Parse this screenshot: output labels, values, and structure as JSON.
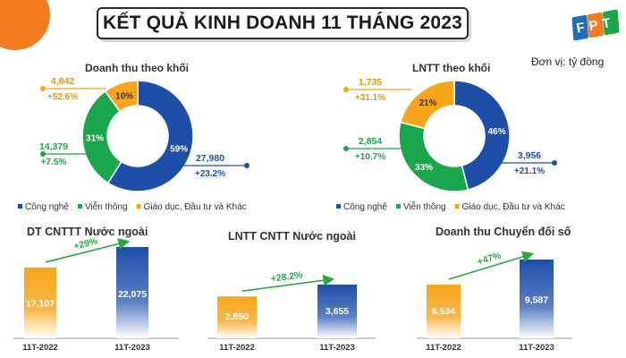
{
  "header": {
    "title": "KẾT QUẢ KINH DOANH 11 THÁNG 2023",
    "unit": "Đơn vị: tỷ đồng",
    "logo_text": "FPT"
  },
  "colors": {
    "blue": "#1e4fa8",
    "green": "#1aa64a",
    "orange": "#f8a51c",
    "accent_orange": "#f47b20",
    "arrow_green": "#27a844"
  },
  "chart_data": [
    {
      "type": "pie",
      "title": "Doanh thu theo khối",
      "slices": [
        {
          "name": "Công nghệ",
          "percent": 59,
          "percent_label": "59%",
          "value": 27980,
          "value_label": "27,980",
          "growth": "+23.2%"
        },
        {
          "name": "Viễn thông",
          "percent": 31,
          "percent_label": "31%",
          "value": 14379,
          "value_label": "14,379",
          "growth": "+7.5%"
        },
        {
          "name": "Giáo dục, Đầu tư và Khác",
          "percent": 10,
          "percent_label": "10%",
          "value": 4842,
          "value_label": "4,842",
          "growth": "+52.6%"
        }
      ],
      "legend": [
        "Công nghệ",
        "Viễn thông",
        "Giáo dục, Đầu tư và Khác"
      ],
      "legend_placement": "bottom"
    },
    {
      "type": "pie",
      "title": "LNTT theo khối",
      "slices": [
        {
          "name": "Công nghệ",
          "percent": 46,
          "percent_label": "46%",
          "value": 3956,
          "value_label": "3,956",
          "growth": "+21.1%"
        },
        {
          "name": "Viễn thông",
          "percent": 33,
          "percent_label": "33%",
          "value": 2854,
          "value_label": "2,854",
          "growth": "+10.7%"
        },
        {
          "name": "Giáo dục, Đầu tư và Khác",
          "percent": 21,
          "percent_label": "21%",
          "value": 1735,
          "value_label": "1,735",
          "growth": "+31.1%"
        }
      ],
      "legend": [
        "Công nghệ",
        "Viễn thông",
        "Giáo dục, Đầu tư và Khác"
      ],
      "legend_placement": "bottom"
    },
    {
      "type": "bar",
      "title": "DT CNTTT Nước ngoài",
      "categories": [
        "11T-2022",
        "11T-2023"
      ],
      "values": [
        17107,
        22075
      ],
      "value_labels": [
        "17,107",
        "22,075"
      ],
      "growth": "+29%"
    },
    {
      "type": "bar",
      "title": "LNTT CNTT Nước ngoài",
      "categories": [
        "11T-2022",
        "11T-2023"
      ],
      "values": [
        2850,
        3655
      ],
      "value_labels": [
        "2,850",
        "3,655"
      ],
      "growth": "+28.2%"
    },
    {
      "type": "bar",
      "title": "Doanh thu Chuyển đổi số",
      "categories": [
        "11T-2022",
        "11T-2023"
      ],
      "values": [
        6534,
        9587
      ],
      "value_labels": [
        "6,534",
        "9,587"
      ],
      "growth": "+47%"
    }
  ]
}
